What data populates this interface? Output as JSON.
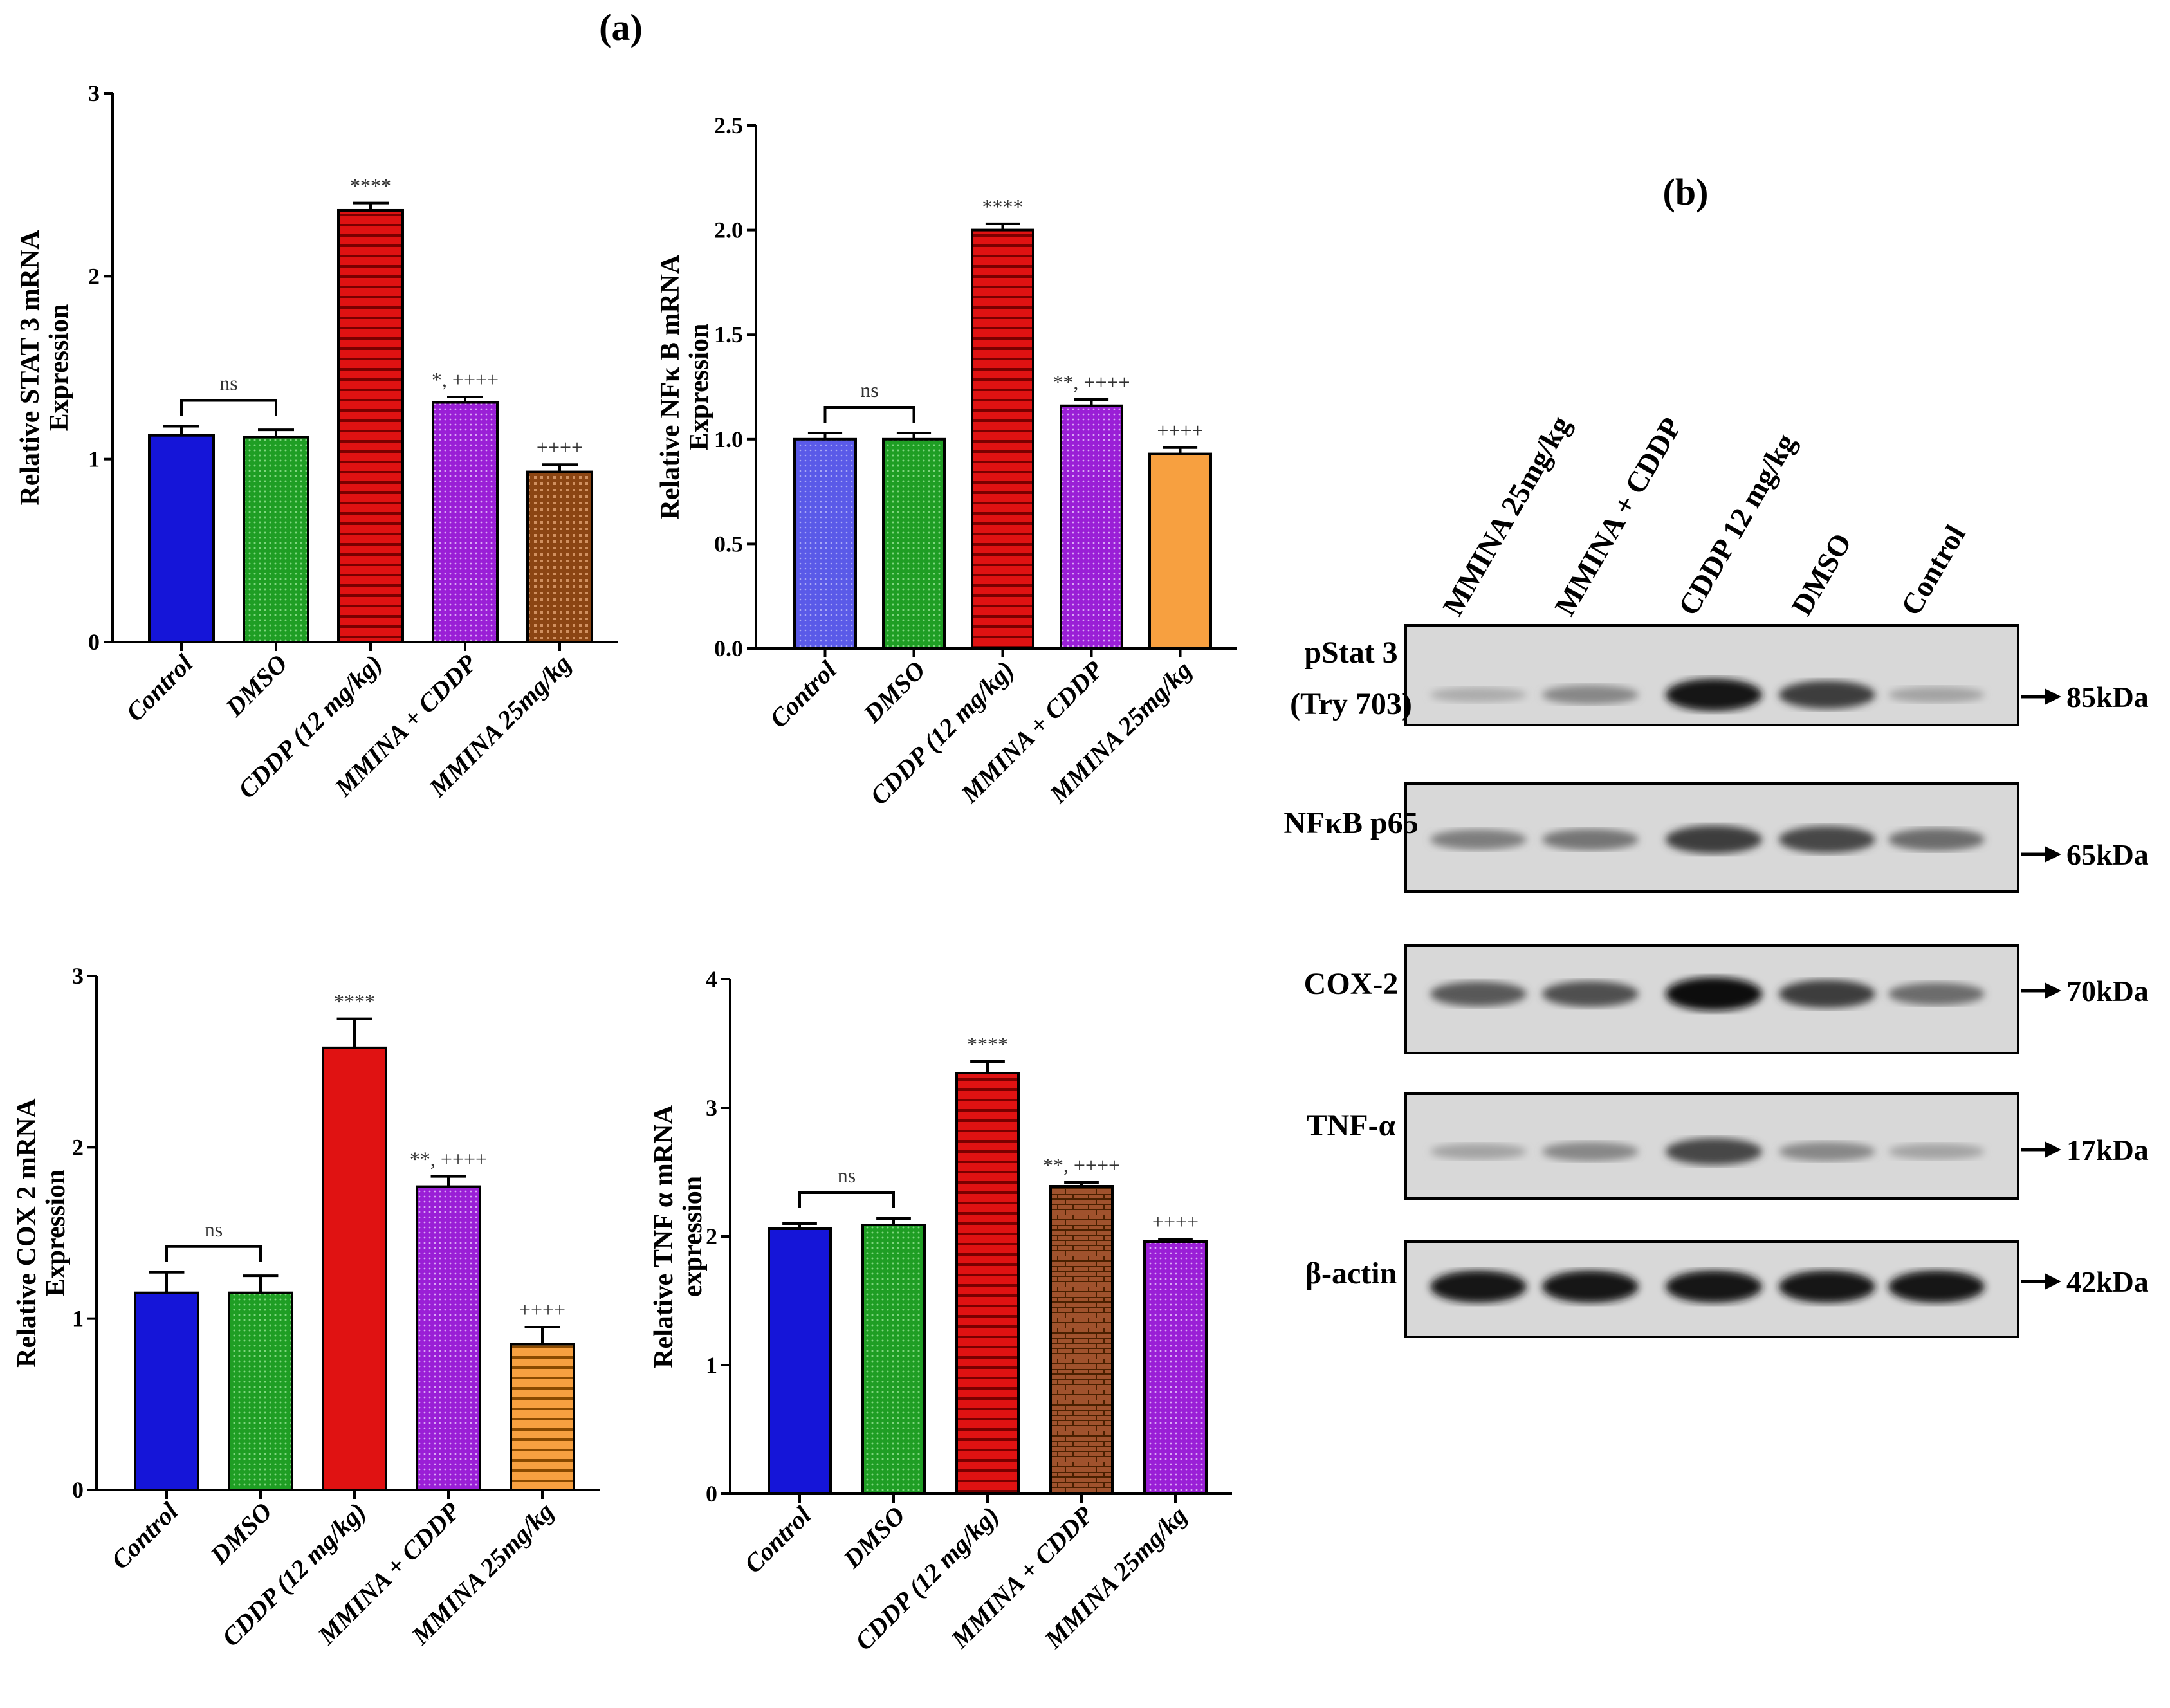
{
  "panel_labels": {
    "a": "(a)",
    "b": "(b)"
  },
  "colors": {
    "blue": "#1515d8",
    "green": "#1f9e24",
    "red": "#e01212",
    "purple": "#9a1fd6",
    "brown": "#8b4513",
    "orange": "#f7a040",
    "light_blue": "#5a5ae8"
  },
  "chart_data": [
    {
      "type": "bar",
      "ylabel": [
        "Relative STAT 3 mRNA",
        "Expression"
      ],
      "categories": [
        "Control",
        "DMSO",
        "CDDP (12 mg/kg)",
        "MMINA + CDDP",
        "MMINA 25mg/kg"
      ],
      "values": [
        1.13,
        1.12,
        2.36,
        1.31,
        0.93
      ],
      "errors": [
        0.05,
        0.04,
        0.04,
        0.03,
        0.04
      ],
      "annotations": [
        "",
        "",
        "****",
        "*, ++++",
        "++++"
      ],
      "bracket": "ns",
      "ylim": [
        0,
        3
      ],
      "yticks": [
        "0",
        "1",
        "2",
        "3"
      ],
      "tick_values": [
        0,
        1,
        2,
        3
      ],
      "fills": [
        "blue",
        "green",
        "red-hstripes",
        "purple",
        "brown-grid"
      ]
    },
    {
      "type": "bar",
      "ylabel": [
        "Relative NFκ B mRNA",
        "Expression"
      ],
      "categories": [
        "Control",
        "DMSO",
        "CDDP (12 mg/kg)",
        "MMINA + CDDP",
        "MMINA 25mg/kg"
      ],
      "values": [
        1.0,
        1.0,
        2.0,
        1.16,
        0.93
      ],
      "errors": [
        0.03,
        0.03,
        0.03,
        0.03,
        0.03
      ],
      "annotations": [
        "",
        "",
        "****",
        "**, ++++",
        "++++"
      ],
      "bracket": "ns",
      "ylim": [
        0,
        2.5
      ],
      "yticks": [
        "0.0",
        "0.5",
        "1.0",
        "1.5",
        "2.0",
        "2.5"
      ],
      "tick_values": [
        0,
        0.5,
        1.0,
        1.5,
        2.0,
        2.5
      ],
      "fills": [
        "light_blue",
        "green",
        "red-hstripes",
        "purple",
        "orange"
      ]
    },
    {
      "type": "bar",
      "ylabel": [
        "Relative COX 2 mRNA",
        "Expression"
      ],
      "categories": [
        "Control",
        "DMSO",
        "CDDP (12 mg/kg)",
        "MMINA + CDDP",
        "MMINA 25mg/kg"
      ],
      "values": [
        1.15,
        1.15,
        2.58,
        1.77,
        0.85
      ],
      "errors": [
        0.12,
        0.1,
        0.17,
        0.06,
        0.1
      ],
      "annotations": [
        "",
        "",
        "****",
        "**, ++++",
        "++++"
      ],
      "bracket": "ns",
      "ylim": [
        0,
        3
      ],
      "yticks": [
        "0",
        "1",
        "2",
        "3"
      ],
      "tick_values": [
        0,
        1,
        2,
        3
      ],
      "fills": [
        "blue",
        "green",
        "red",
        "purple",
        "orange-hstripes"
      ]
    },
    {
      "type": "bar",
      "ylabel": [
        "Relative TNF α  mRNA",
        "expression"
      ],
      "categories": [
        "Control",
        "DMSO",
        "CDDP (12 mg/kg)",
        "MMINA + CDDP",
        "MMINA 25mg/kg"
      ],
      "values": [
        2.06,
        2.09,
        3.27,
        2.39,
        1.96
      ],
      "errors": [
        0.04,
        0.05,
        0.09,
        0.03,
        0.02
      ],
      "annotations": [
        "",
        "",
        "****",
        "**, ++++",
        "++++"
      ],
      "bracket": "ns",
      "ylim": [
        0,
        4
      ],
      "yticks": [
        "0",
        "1",
        "2",
        "3",
        "4"
      ],
      "tick_values": [
        0,
        1,
        2,
        3,
        4
      ],
      "fills": [
        "blue",
        "green",
        "red-hstripes",
        "brown-brick",
        "purple"
      ]
    }
  ],
  "western_blot": {
    "lanes": [
      "MMINA  25mg/kg",
      "MMINA + CDDP",
      "CDDP 12 mg/kg",
      "DMSO",
      "Control"
    ],
    "rows": [
      {
        "label": [
          "pStat 3",
          "(Try 703)"
        ],
        "kda": "85kDa",
        "intensity": [
          0.15,
          0.35,
          0.95,
          0.75,
          0.2
        ]
      },
      {
        "label": [
          "NFκB p65"
        ],
        "kda": "65kDa",
        "intensity": [
          0.4,
          0.45,
          0.75,
          0.7,
          0.5
        ]
      },
      {
        "label": [
          "COX-2"
        ],
        "kda": "70kDa",
        "intensity": [
          0.6,
          0.65,
          1.0,
          0.75,
          0.5
        ]
      },
      {
        "label": [
          "TNF-α"
        ],
        "kda": "17kDa",
        "intensity": [
          0.2,
          0.35,
          0.7,
          0.35,
          0.2
        ]
      },
      {
        "label": [
          "β-actin"
        ],
        "kda": "42kDa",
        "intensity": [
          0.95,
          0.95,
          0.95,
          0.95,
          0.95
        ]
      }
    ]
  }
}
